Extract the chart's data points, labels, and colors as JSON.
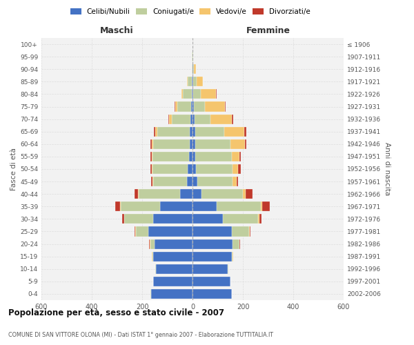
{
  "age_groups": [
    "0-4",
    "5-9",
    "10-14",
    "15-19",
    "20-24",
    "25-29",
    "30-34",
    "35-39",
    "40-44",
    "45-49",
    "50-54",
    "55-59",
    "60-64",
    "65-69",
    "70-74",
    "75-79",
    "80-84",
    "85-89",
    "90-94",
    "95-99",
    "100+"
  ],
  "birth_years": [
    "2002-2006",
    "1997-2001",
    "1992-1996",
    "1987-1991",
    "1982-1986",
    "1977-1981",
    "1972-1976",
    "1967-1971",
    "1962-1966",
    "1957-1961",
    "1952-1956",
    "1947-1951",
    "1942-1946",
    "1937-1941",
    "1932-1936",
    "1927-1931",
    "1922-1926",
    "1917-1921",
    "1912-1916",
    "1907-1911",
    "≤ 1906"
  ],
  "male": {
    "celibi": [
      165,
      155,
      145,
      155,
      150,
      175,
      155,
      130,
      50,
      22,
      18,
      14,
      12,
      10,
      8,
      5,
      4,
      2,
      0,
      0,
      0
    ],
    "coniugati": [
      2,
      2,
      3,
      5,
      18,
      50,
      115,
      155,
      165,
      135,
      140,
      145,
      145,
      130,
      75,
      55,
      35,
      18,
      4,
      2,
      0
    ],
    "vedovi": [
      0,
      0,
      0,
      2,
      2,
      2,
      2,
      2,
      2,
      2,
      3,
      4,
      5,
      8,
      10,
      8,
      4,
      2,
      0,
      0,
      0
    ],
    "divorziati": [
      0,
      0,
      0,
      0,
      2,
      3,
      8,
      20,
      12,
      5,
      5,
      5,
      5,
      5,
      4,
      2,
      0,
      0,
      0,
      0,
      0
    ]
  },
  "female": {
    "nubili": [
      155,
      150,
      140,
      155,
      160,
      155,
      120,
      95,
      35,
      20,
      15,
      12,
      12,
      10,
      7,
      5,
      3,
      2,
      2,
      0,
      0
    ],
    "coniugate": [
      2,
      2,
      3,
      5,
      25,
      70,
      140,
      175,
      165,
      140,
      145,
      145,
      140,
      115,
      65,
      45,
      30,
      15,
      4,
      2,
      0
    ],
    "vedove": [
      0,
      0,
      0,
      2,
      2,
      3,
      5,
      8,
      12,
      15,
      20,
      30,
      55,
      80,
      85,
      80,
      60,
      25,
      8,
      2,
      0
    ],
    "divorziate": [
      0,
      0,
      0,
      0,
      2,
      3,
      8,
      30,
      25,
      5,
      12,
      5,
      8,
      8,
      5,
      2,
      2,
      0,
      0,
      0,
      0
    ]
  },
  "colors": {
    "celibi_nubili": "#4472C4",
    "coniugati": "#BFCE9E",
    "vedovi": "#F5C56D",
    "divorziati": "#C0392B"
  },
  "title": "Popolazione per età, sesso e stato civile - 2007",
  "subtitle": "COMUNE DI SAN VITTORE OLONA (MI) - Dati ISTAT 1° gennaio 2007 - Elaborazione TUTTITALIA.IT",
  "xlabel_left": "Maschi",
  "xlabel_right": "Femmine",
  "ylabel_left": "Fasce di età",
  "ylabel_right": "Anni di nascita",
  "xlim": 600,
  "legend_labels": [
    "Celibi/Nubili",
    "Coniugati/e",
    "Vedovi/e",
    "Divorziati/e"
  ],
  "bg_color": "#FFFFFF",
  "grid_color": "#CCCCCC"
}
